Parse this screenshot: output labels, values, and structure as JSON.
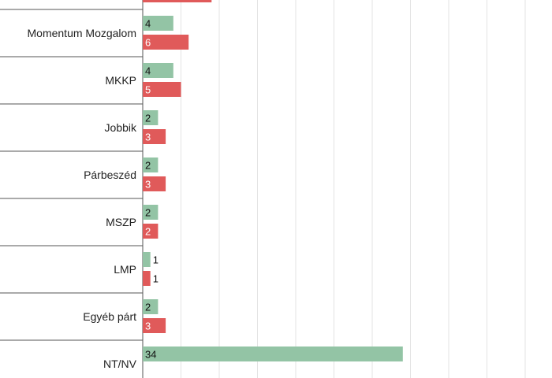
{
  "chart_data": {
    "type": "bar",
    "orientation": "horizontal",
    "categories": [
      "",
      "Momentum Mozgalom",
      "MKKP",
      "Jobbik",
      "Párbeszéd",
      "MSZP",
      "LMP",
      "Egyéb párt",
      "NT/NV"
    ],
    "series": [
      {
        "color": "#93c4a5",
        "values": [
          null,
          4,
          4,
          2,
          2,
          2,
          1,
          2,
          34
        ]
      },
      {
        "color": "#e05a5a",
        "values": [
          9,
          6,
          5,
          3,
          3,
          2,
          1,
          3,
          null
        ]
      }
    ],
    "value_labels_visible": [
      [
        null,
        "4",
        "4",
        "2",
        "2",
        "2",
        "1",
        "2",
        "34"
      ],
      [
        null,
        "6",
        "5",
        "3",
        "3",
        "2",
        "1",
        "3",
        null
      ]
    ],
    "xlim": [
      0,
      50
    ],
    "grid": true
  }
}
